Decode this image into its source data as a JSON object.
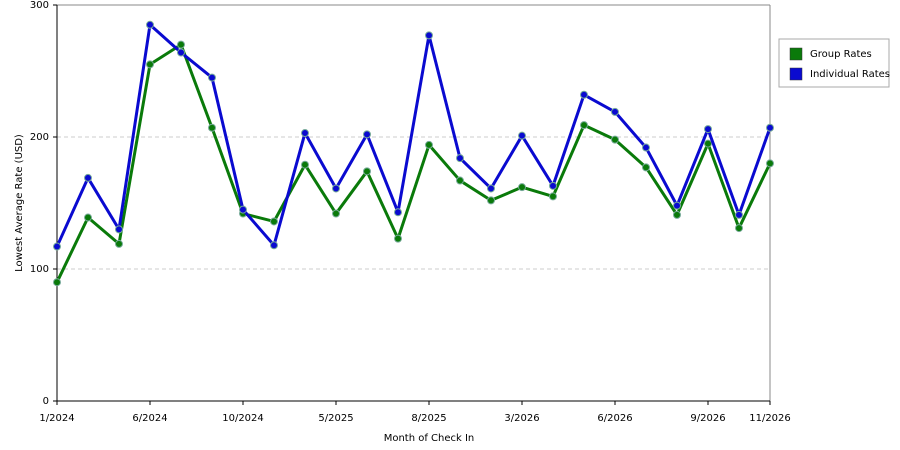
{
  "chart_data": {
    "type": "line",
    "x_label": "Month of Check In",
    "y_label": "Lowest Average Rate (USD)",
    "categories": [
      "1/2024",
      null,
      null,
      "6/2024",
      null,
      null,
      "10/2024",
      null,
      null,
      "5/2025",
      null,
      null,
      "8/2025",
      null,
      null,
      "3/2026",
      null,
      null,
      "6/2026",
      null,
      null,
      "9/2026",
      null,
      "11/2026"
    ],
    "series": [
      {
        "name": "Group Rates",
        "color": "#0a7a0a",
        "values": [
          90,
          139,
          119,
          255,
          270,
          207,
          142,
          136,
          179,
          142,
          174,
          123,
          194,
          167,
          152,
          162,
          155,
          209,
          198,
          177,
          141,
          195,
          131,
          180
        ]
      },
      {
        "name": "Individual Rates",
        "color": "#0a0ad0",
        "values": [
          117,
          169,
          130,
          285,
          264,
          245,
          145,
          118,
          203,
          161,
          202,
          143,
          277,
          184,
          161,
          201,
          163,
          232,
          219,
          192,
          148,
          206,
          141,
          207
        ]
      }
    ],
    "ylim": [
      0,
      300
    ],
    "yticks": [
      0,
      100,
      200,
      300
    ],
    "grid": true,
    "legend": "top-right"
  }
}
